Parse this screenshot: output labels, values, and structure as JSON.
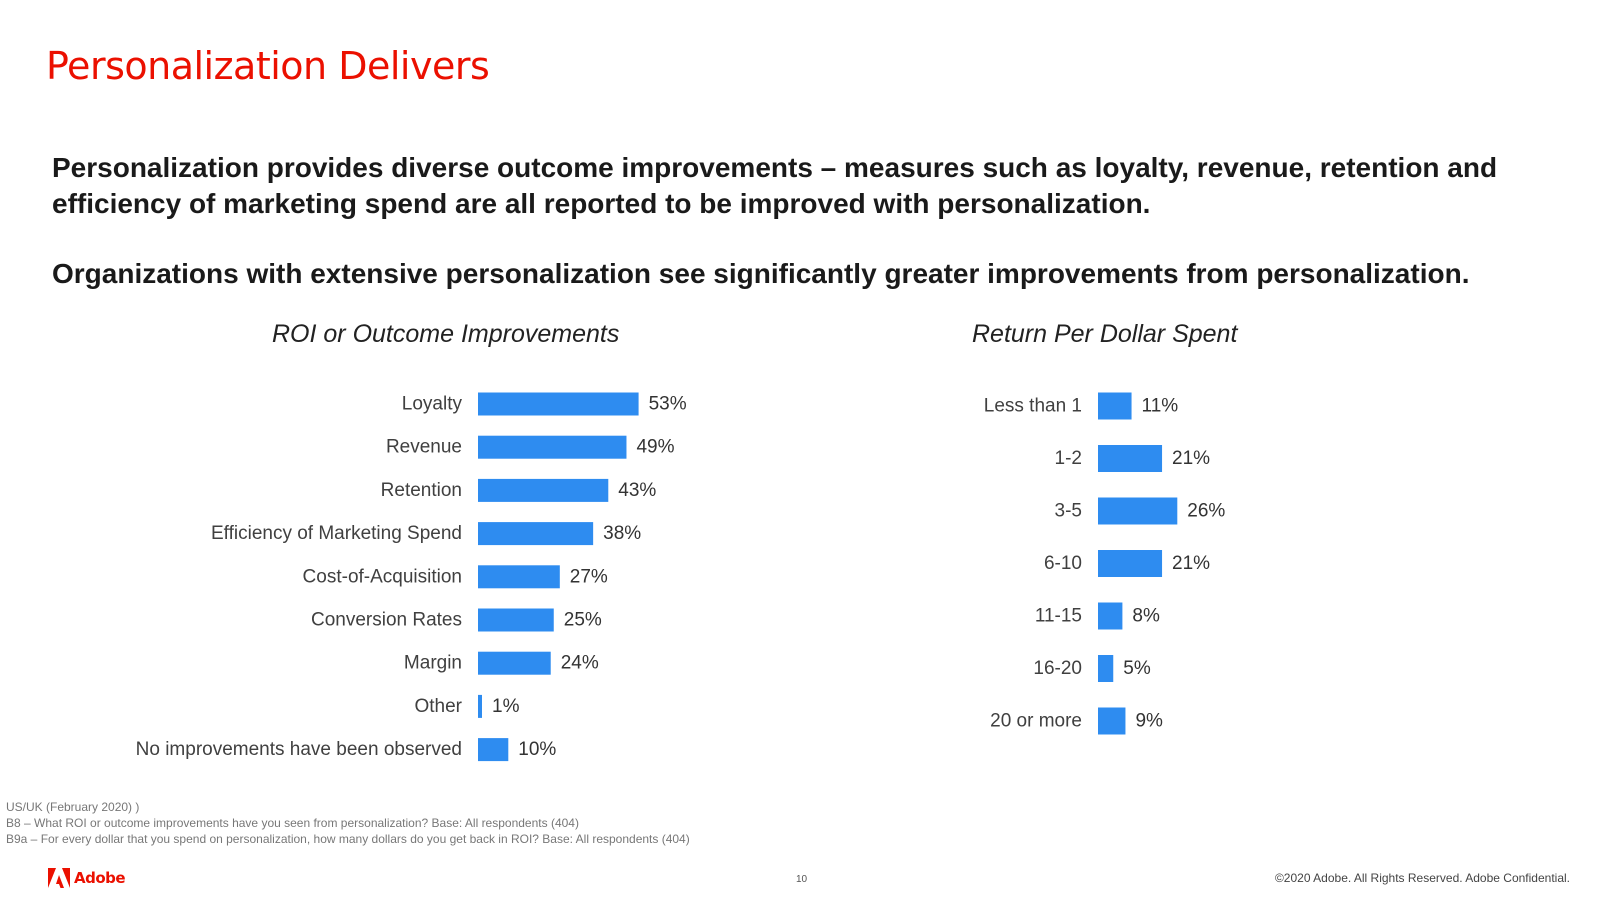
{
  "slide": {
    "title": "Personalization Delivers",
    "para1": "Personalization provides diverse outcome improvements – measures such as loyalty, revenue, retention and efficiency of marketing spend are all reported to be improved with personalization.",
    "para2": "Organizations with extensive personalization see significantly  greater improvements from personalization.",
    "notes": [
      "US/UK (February 2020) )",
      "B8 – What ROI or outcome improvements have you seen from personalization? Base: All respondents (404)",
      "B9a – For every dollar that you spend on personalization, how many dollars do you get back in ROI? Base: All respondents (404)"
    ],
    "logo_text": "Adobe",
    "logo_icon": "adobe-logo-icon",
    "page_number": "10",
    "copyright": "©2020 Adobe. All Rights Reserved. Adobe Confidential."
  },
  "colors": {
    "title": "#eb1000",
    "bar": "#2e8cf0"
  },
  "chart_data": [
    {
      "type": "bar",
      "orientation": "horizontal",
      "title": "ROI or Outcome Improvements",
      "categories": [
        "Loyalty",
        "Revenue",
        "Retention",
        "Efficiency of Marketing Spend",
        "Cost-of-Acquisition",
        "Conversion Rates",
        "Margin",
        "Other",
        "No improvements have been observed"
      ],
      "values": [
        53,
        49,
        43,
        38,
        27,
        25,
        24,
        1,
        10
      ],
      "value_labels": [
        "53%",
        "49%",
        "43%",
        "38%",
        "27%",
        "25%",
        "24%",
        "1%",
        "10%"
      ],
      "grid": false,
      "legend": "none"
    },
    {
      "type": "bar",
      "orientation": "horizontal",
      "title": "Return Per Dollar Spent",
      "categories": [
        "Less than 1",
        "1-2",
        "3-5",
        "6-10",
        "11-15",
        "16-20",
        "20 or more"
      ],
      "values": [
        11,
        21,
        26,
        21,
        8,
        5,
        9
      ],
      "value_labels": [
        "11%",
        "21%",
        "26%",
        "21%",
        "8%",
        "5%",
        "9%"
      ],
      "grid": false,
      "legend": "none"
    }
  ]
}
